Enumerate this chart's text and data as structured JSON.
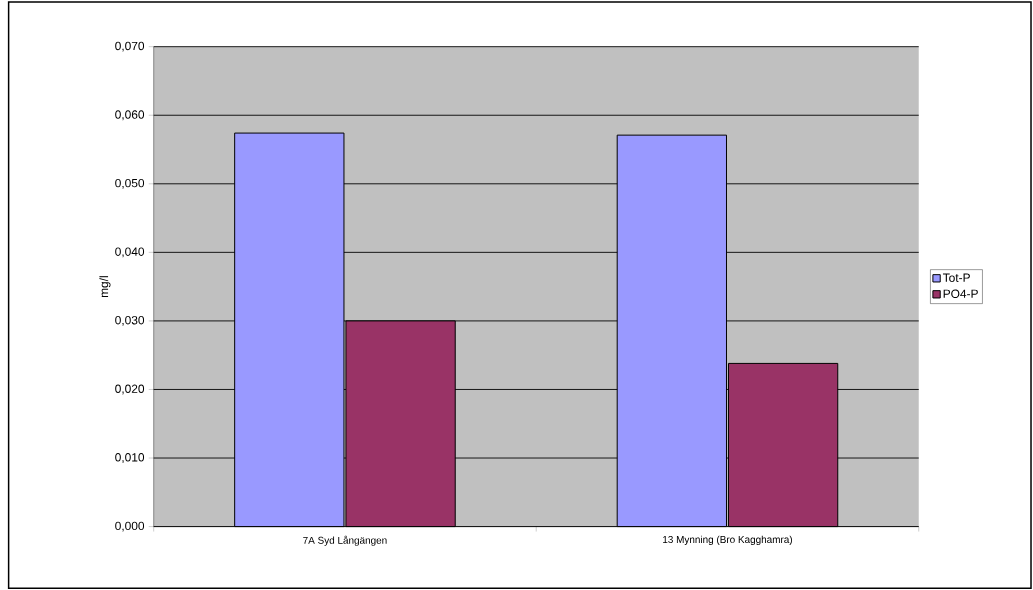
{
  "chart_data": {
    "type": "bar",
    "ylabel": "mg/l",
    "categories": [
      "7A Syd Långängen",
      "13 Mynning (Bro Kagghamra)"
    ],
    "series": [
      {
        "name": "Tot-P",
        "color": "#9999ff",
        "values": [
          0.0574,
          0.0571
        ]
      },
      {
        "name": "PO4-P",
        "color": "#993366",
        "values": [
          0.03,
          0.0238
        ]
      }
    ],
    "ylim": [
      0,
      0.07
    ],
    "yticks": [
      {
        "value": 0,
        "label": "0,000"
      },
      {
        "value": 0.01,
        "label": "0,010"
      },
      {
        "value": 0.02,
        "label": "0,020"
      },
      {
        "value": 0.03,
        "label": "0,030"
      },
      {
        "value": 0.04,
        "label": "0,040"
      },
      {
        "value": 0.05,
        "label": "0,050"
      },
      {
        "value": 0.06,
        "label": "0,060"
      },
      {
        "value": 0.07,
        "label": "0,070"
      }
    ],
    "grid": "y",
    "legend": "right"
  }
}
